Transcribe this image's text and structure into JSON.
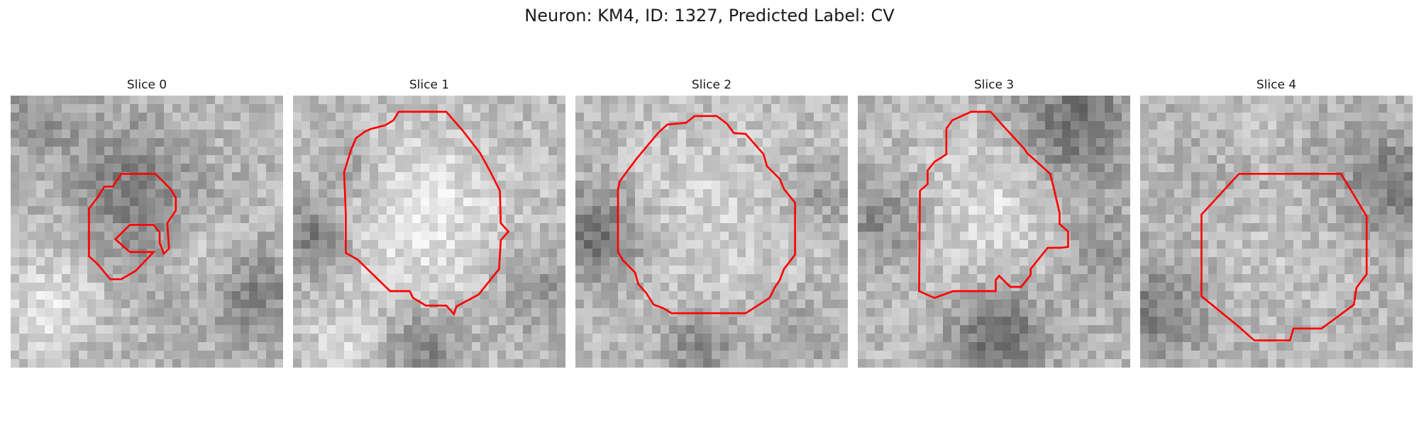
{
  "figure": {
    "title": "Neuron: KM4, ID: 1327, Predicted Label: CV"
  },
  "contour_color": "#ff0000",
  "slices": [
    {
      "label": "Slice 0"
    },
    {
      "label": "Slice 1"
    },
    {
      "label": "Slice 2"
    },
    {
      "label": "Slice 3"
    },
    {
      "label": "Slice 4"
    }
  ]
}
